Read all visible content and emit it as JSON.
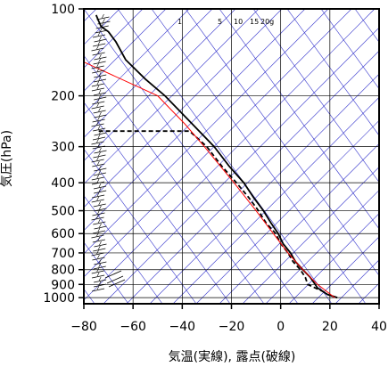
{
  "chart_data": {
    "type": "line",
    "xlabel": "気温(実線), 露点(破線)",
    "ylabel": "気圧(hPa)",
    "x_ticks": [
      -80,
      -60,
      -40,
      -20,
      0,
      20,
      40
    ],
    "x_tick_labels": [
      "−80",
      "−60",
      "−40",
      "−20",
      "0",
      "20",
      "40"
    ],
    "xlim": [
      -80,
      40
    ],
    "y_scale": "log",
    "ylim": [
      1050,
      100
    ],
    "y_ticks": [
      100,
      200,
      300,
      400,
      500,
      600,
      700,
      800,
      900,
      1000
    ],
    "y_tick_labels": [
      "100",
      "200",
      "300",
      "400",
      "500",
      "600",
      "700",
      "800",
      "900",
      "1000"
    ],
    "mixing_ratio_labels": [
      "1",
      "5",
      "10",
      "15",
      "20g"
    ],
    "colors": {
      "temperature": "#000000",
      "dewpoint": "#000000",
      "parcel": "#ff0000",
      "background_lines": "#3333cc",
      "grid": "#000000"
    },
    "series": [
      {
        "style": "solid",
        "pressure": [
          1000,
          975,
          950,
          925,
          900,
          850,
          800,
          750,
          700,
          650,
          600,
          550,
          500,
          450,
          400,
          350,
          300,
          250,
          200,
          175,
          150,
          130,
          120,
          115,
          110,
          105
        ],
        "temperature": [
          23,
          19,
          17,
          15,
          14,
          12,
          9,
          6,
          4,
          1,
          -1,
          -4,
          -7,
          -11,
          -15,
          -21,
          -27,
          -36,
          -47,
          -55,
          -63,
          -67,
          -70,
          -73,
          -74,
          -75
        ]
      },
      {
        "style": "dashed",
        "pressure": [
          1000,
          975,
          950,
          925,
          900,
          850,
          800,
          750,
          700,
          650,
          600,
          550,
          500,
          450,
          400,
          350,
          300,
          265,
          265
        ],
        "temperature": [
          23,
          19,
          17,
          14,
          11,
          10,
          8,
          5,
          3,
          0,
          -2,
          -6,
          -9,
          -13,
          -18,
          -24,
          -30,
          -37,
          -75
        ]
      },
      {
        "style": "parcel",
        "pressure": [
          1000,
          900,
          800,
          700,
          600,
          500,
          400,
          300,
          250,
          200,
          150
        ],
        "temperature": [
          22,
          15,
          9,
          3,
          -3,
          -10,
          -19,
          -31,
          -39,
          -50,
          -82
        ]
      }
    ],
    "wind_barbs": {
      "location": "left"
    },
    "grid": true
  }
}
